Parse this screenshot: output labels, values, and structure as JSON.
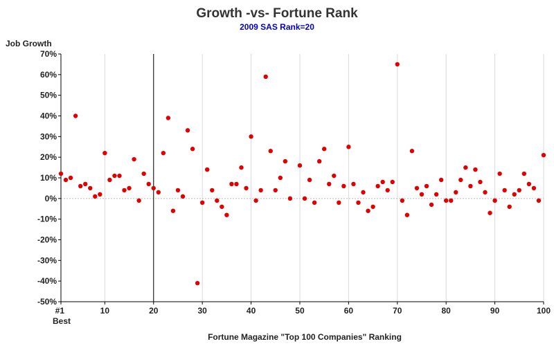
{
  "chart_data": {
    "type": "scatter",
    "title": "Growth -vs- Fortune Rank",
    "subtitle": "2009 SAS Rank=20",
    "xlabel": "Fortune Magazine \"Top 100 Companies\" Ranking",
    "ylabel": "Job Growth",
    "xlim": [
      1,
      100
    ],
    "ylim": [
      -50,
      70
    ],
    "x_ticks": [
      1,
      10,
      20,
      30,
      40,
      50,
      60,
      70,
      80,
      90,
      100
    ],
    "x_tick_labels": [
      "#1",
      "10",
      "20",
      "30",
      "40",
      "50",
      "60",
      "70",
      "80",
      "90",
      "100"
    ],
    "x_first_tick_sublabel": "Best",
    "y_ticks": [
      -50,
      -40,
      -30,
      -20,
      -10,
      0,
      10,
      20,
      30,
      40,
      50,
      60,
      70
    ],
    "y_tick_labels": [
      "-50%",
      "-40%",
      "-30%",
      "-20%",
      "-10%",
      "0%",
      "10%",
      "20%",
      "30%",
      "40%",
      "50%",
      "60%",
      "70%"
    ],
    "grid": "vertical",
    "reference_line_x": 20,
    "point_color": "#e00000",
    "reference_line_color": "#000000",
    "points": [
      [
        1,
        12
      ],
      [
        2,
        9
      ],
      [
        3,
        10
      ],
      [
        4,
        40
      ],
      [
        5,
        6
      ],
      [
        6,
        7
      ],
      [
        7,
        5
      ],
      [
        8,
        1
      ],
      [
        9,
        2
      ],
      [
        10,
        22
      ],
      [
        11,
        9
      ],
      [
        12,
        11
      ],
      [
        13,
        11
      ],
      [
        14,
        4
      ],
      [
        15,
        5
      ],
      [
        16,
        19
      ],
      [
        17,
        -1
      ],
      [
        18,
        12
      ],
      [
        19,
        7
      ],
      [
        20,
        5
      ],
      [
        21,
        3
      ],
      [
        22,
        22
      ],
      [
        23,
        39
      ],
      [
        24,
        -6
      ],
      [
        25,
        4
      ],
      [
        26,
        1
      ],
      [
        27,
        33
      ],
      [
        28,
        24
      ],
      [
        29,
        -41
      ],
      [
        30,
        -2
      ],
      [
        31,
        14
      ],
      [
        32,
        4
      ],
      [
        33,
        -1
      ],
      [
        34,
        -4
      ],
      [
        35,
        -8
      ],
      [
        36,
        7
      ],
      [
        37,
        7
      ],
      [
        38,
        15
      ],
      [
        39,
        5
      ],
      [
        40,
        30
      ],
      [
        41,
        -1
      ],
      [
        42,
        4
      ],
      [
        43,
        59
      ],
      [
        44,
        23
      ],
      [
        45,
        4
      ],
      [
        46,
        10
      ],
      [
        47,
        18
      ],
      [
        48,
        0
      ],
      [
        50,
        16
      ],
      [
        51,
        0
      ],
      [
        52,
        9
      ],
      [
        53,
        -2
      ],
      [
        54,
        18
      ],
      [
        55,
        24
      ],
      [
        56,
        7
      ],
      [
        57,
        11
      ],
      [
        58,
        -2
      ],
      [
        59,
        6
      ],
      [
        60,
        25
      ],
      [
        61,
        7
      ],
      [
        62,
        -2
      ],
      [
        63,
        3
      ],
      [
        64,
        -6
      ],
      [
        65,
        -4
      ],
      [
        66,
        6
      ],
      [
        67,
        8
      ],
      [
        68,
        4
      ],
      [
        69,
        8
      ],
      [
        70,
        65
      ],
      [
        71,
        -1
      ],
      [
        72,
        -8
      ],
      [
        73,
        23
      ],
      [
        74,
        5
      ],
      [
        75,
        2
      ],
      [
        76,
        6
      ],
      [
        77,
        -3
      ],
      [
        78,
        2
      ],
      [
        79,
        9
      ],
      [
        80,
        -1
      ],
      [
        81,
        -1
      ],
      [
        82,
        3
      ],
      [
        83,
        9
      ],
      [
        84,
        15
      ],
      [
        85,
        6
      ],
      [
        86,
        14
      ],
      [
        87,
        8
      ],
      [
        88,
        3
      ],
      [
        89,
        -7
      ],
      [
        90,
        -1
      ],
      [
        91,
        12
      ],
      [
        92,
        4
      ],
      [
        93,
        -4
      ],
      [
        94,
        2
      ],
      [
        95,
        4
      ],
      [
        96,
        12
      ],
      [
        97,
        7
      ],
      [
        98,
        5
      ],
      [
        99,
        -1
      ],
      [
        100,
        21
      ]
    ]
  }
}
